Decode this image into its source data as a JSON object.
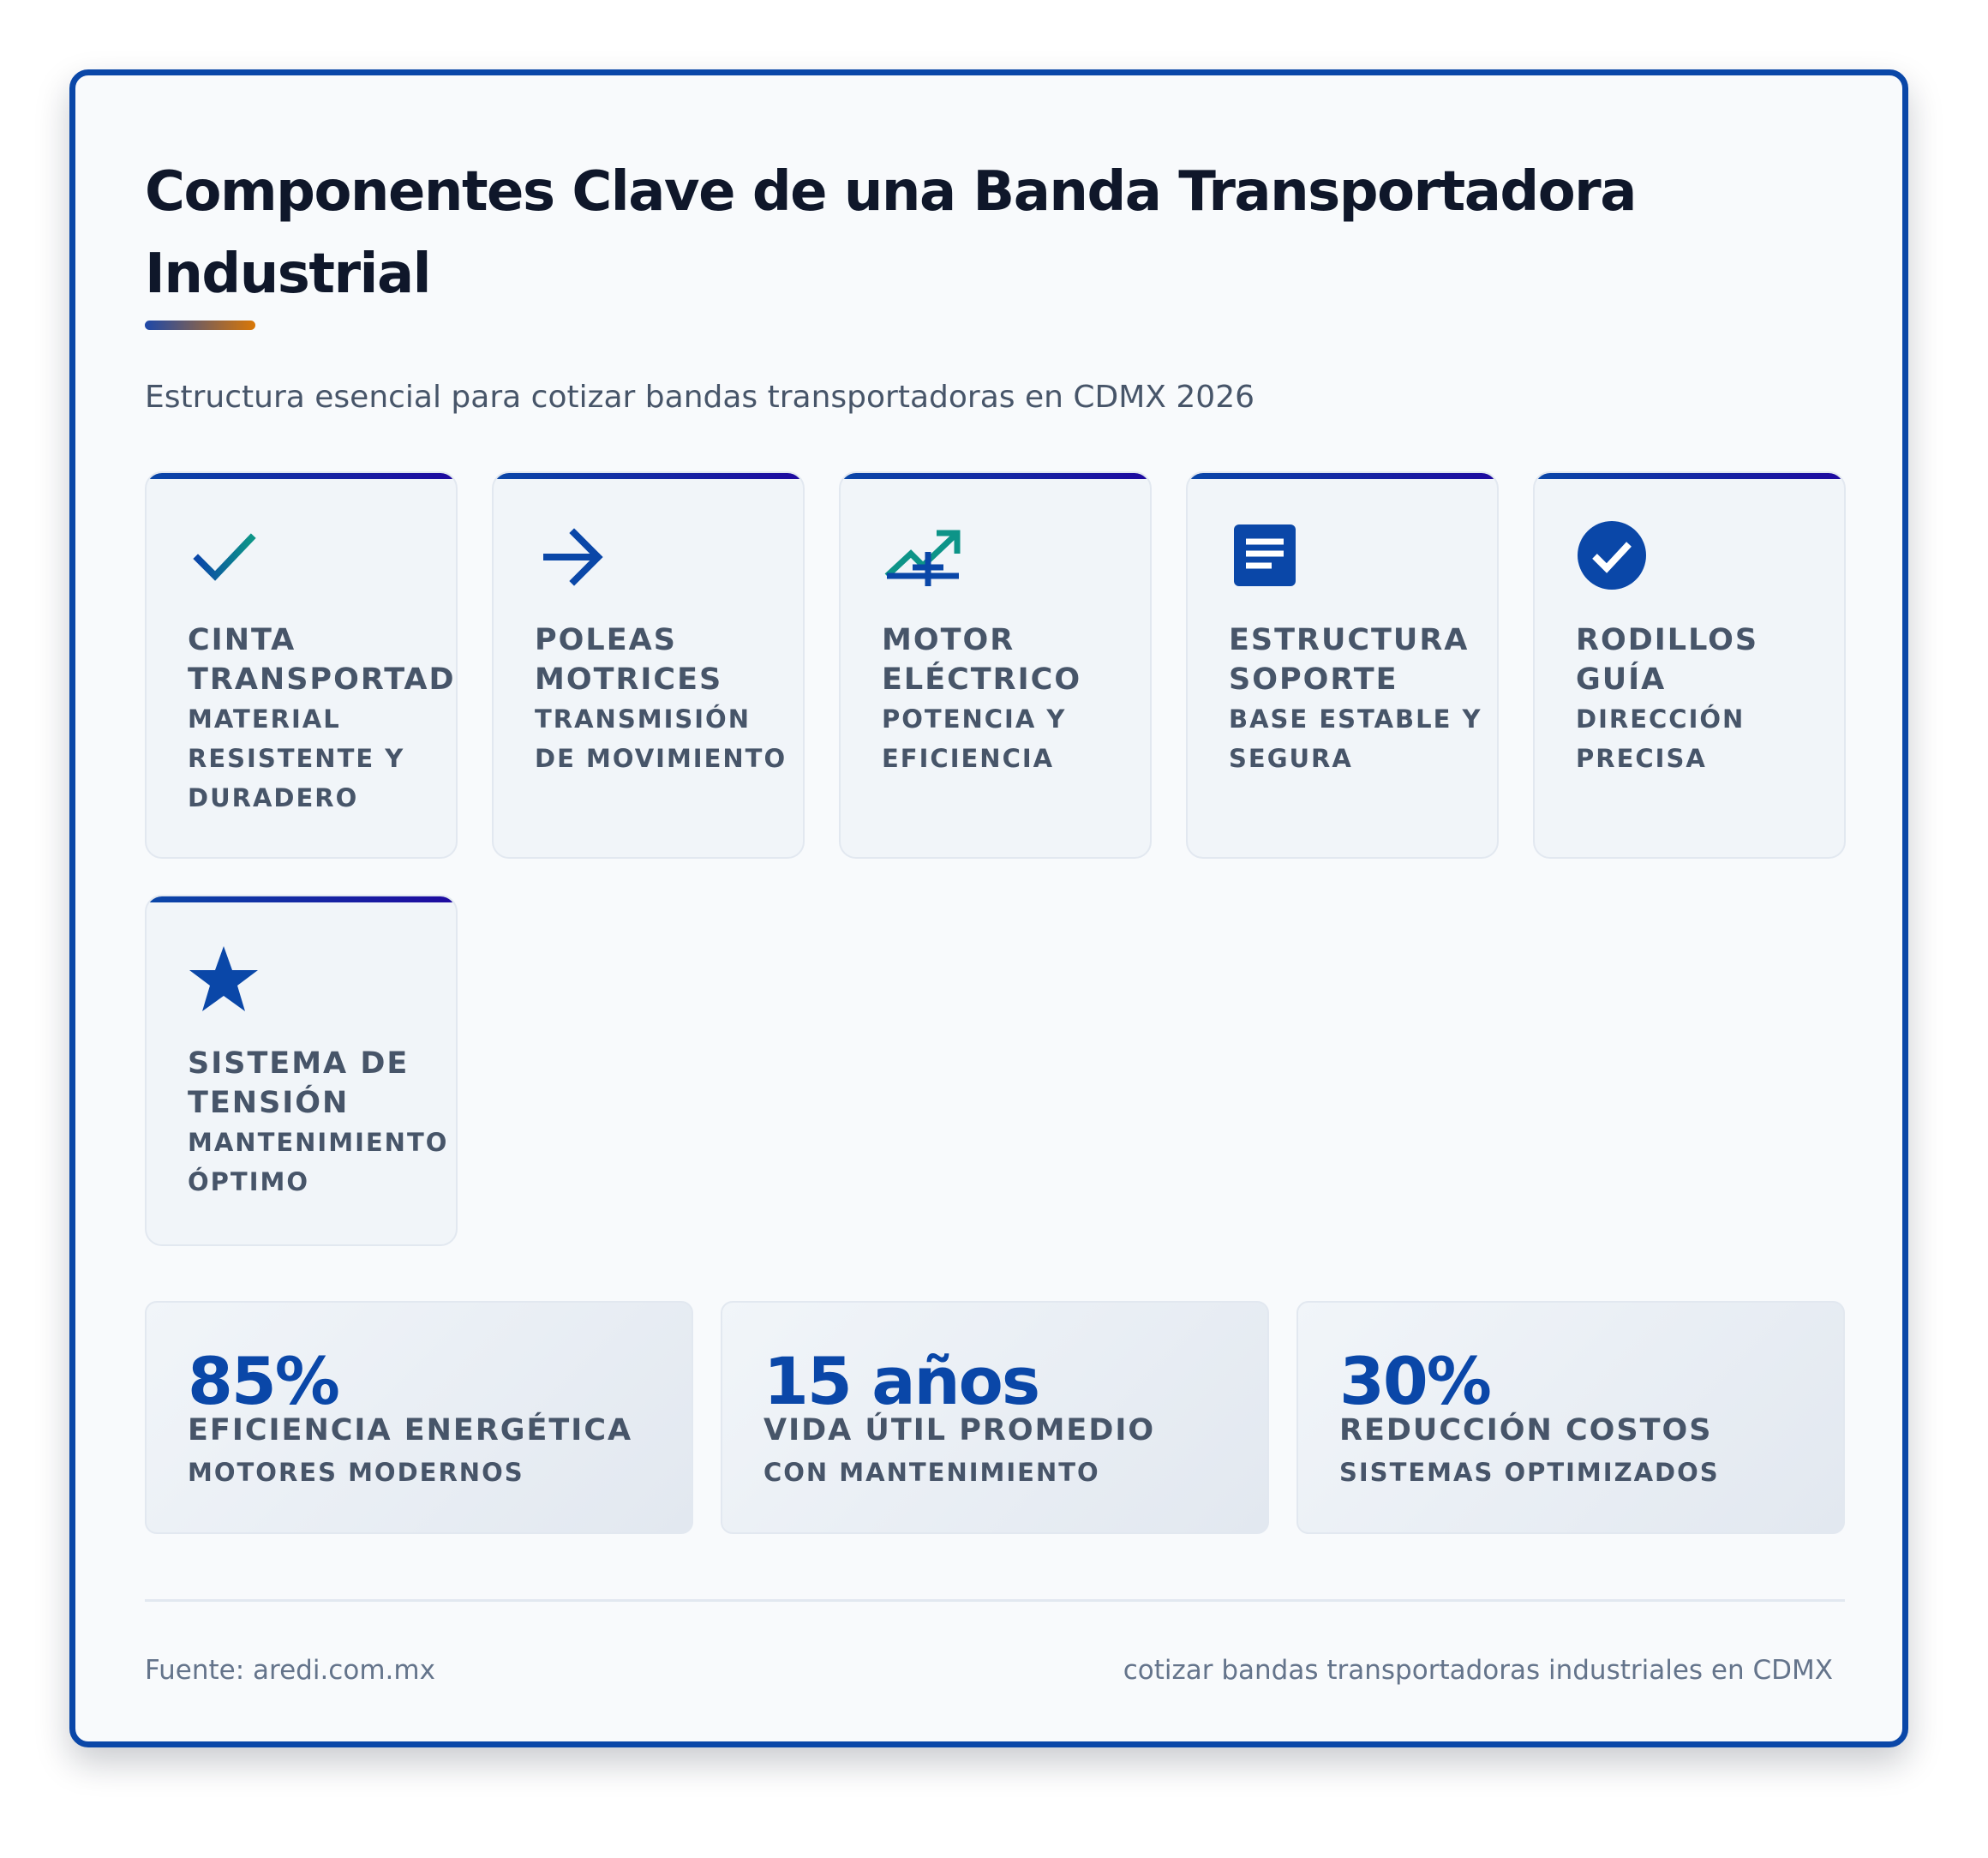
{
  "header": {
    "title": "Componentes Clave de una Banda Transportadora Industrial",
    "subtitle": "Estructura esencial para cotizar bandas transportadoras en CDMX 2026"
  },
  "components": [
    {
      "icon": "checkmark-icon",
      "name": "Cinta Transportadora",
      "desc": "Material resistente y duradero"
    },
    {
      "icon": "arrow-right-icon",
      "name": "Poleas Motrices",
      "desc": "Transmisión de movimiento"
    },
    {
      "icon": "trending-up-icon",
      "name": "Motor Eléctrico",
      "desc": "Potencia y eficiencia"
    },
    {
      "icon": "document-icon",
      "name": "Estructura Soporte",
      "desc": "Base estable y segura"
    },
    {
      "icon": "check-circle-icon",
      "name": "Rodillos Guía",
      "desc": "Dirección precisa"
    },
    {
      "icon": "star-icon",
      "name": "Sistema de Tensión",
      "desc": "Mantenimiento óptimo"
    }
  ],
  "stats": [
    {
      "value": "85%",
      "label": "Eficiencia Energética",
      "sublabel": "Motores modernos"
    },
    {
      "value": "15 años",
      "label": "Vida Útil Promedio",
      "sublabel": "Con mantenimiento"
    },
    {
      "value": "30%",
      "label": "Reducción Costos",
      "sublabel": "Sistemas optimizados"
    }
  ],
  "footer": {
    "source": "Fuente: aredi.com.mx",
    "tagline": "cotizar bandas transportadoras industriales en CDMX"
  },
  "colors": {
    "primary": "#0a47a8",
    "accent": "#d97706",
    "teal": "#0d9488",
    "text_dark": "#0f172a",
    "text_muted": "#475569"
  }
}
